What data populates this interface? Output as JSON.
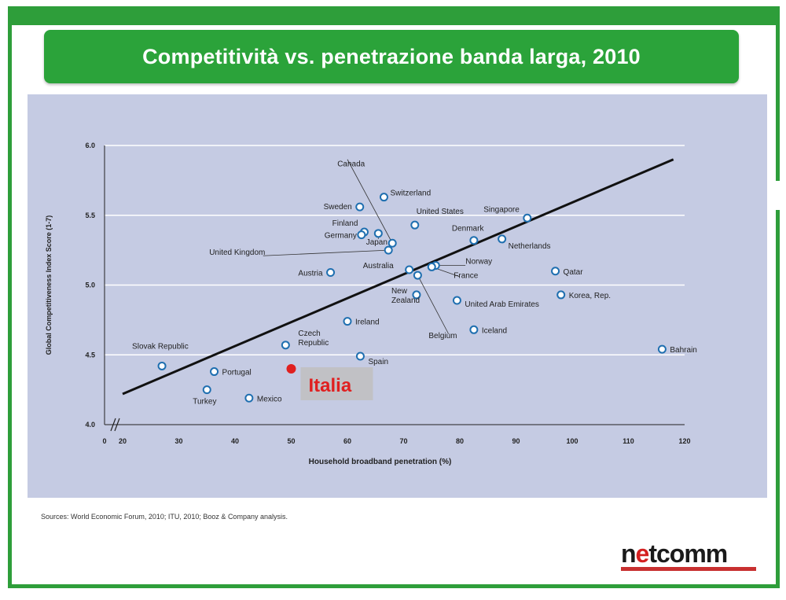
{
  "slide": {
    "title": "Competitività vs. penetrazione banda larga, 2010",
    "sources": "Sources: World Economic Forum, 2010; ITU, 2010; Booz & Company analysis.",
    "logo_text_a": "n",
    "logo_text_b": "e",
    "logo_text_c": "tcomm"
  },
  "colors": {
    "green": "#2ba33a",
    "panel": "#c5cbe3",
    "marker": "#1f6fb0",
    "highlight": "#e02020"
  },
  "chart_data": {
    "type": "scatter",
    "title": "",
    "xlabel": "Household broadband penetration (%)",
    "ylabel": "Global Competitiveness Index Score (1-7)",
    "xlim": [
      20,
      120
    ],
    "ylim": [
      4.0,
      6.0
    ],
    "x_axis_break": true,
    "x_ticks": [
      "0",
      "20",
      "30",
      "40",
      "50",
      "60",
      "70",
      "80",
      "90",
      "100",
      "110",
      "120"
    ],
    "y_ticks": [
      "4.0",
      "4.5",
      "5.0",
      "5.5",
      "6.0"
    ],
    "grid": "horizontal",
    "trendline": [
      [
        20,
        4.22
      ],
      [
        118,
        5.9
      ]
    ],
    "points": [
      {
        "label": "Switzerland",
        "x": 66.5,
        "y": 5.63
      },
      {
        "label": "Sweden",
        "x": 62.2,
        "y": 5.56
      },
      {
        "label": "Singapore",
        "x": 92,
        "y": 5.48
      },
      {
        "label": "United States",
        "x": 72,
        "y": 5.43
      },
      {
        "label": "Finland",
        "x": 63,
        "y": 5.38
      },
      {
        "label": "Germany",
        "x": 62.5,
        "y": 5.36
      },
      {
        "label": "Japan",
        "x": 65.5,
        "y": 5.37
      },
      {
        "label": "Canada",
        "x": 68,
        "y": 5.3
      },
      {
        "label": "Denmark",
        "x": 82.5,
        "y": 5.32
      },
      {
        "label": "Netherlands",
        "x": 87.5,
        "y": 5.33
      },
      {
        "label": "United Kingdom",
        "x": 67.3,
        "y": 5.25
      },
      {
        "label": "Norway",
        "x": 75.7,
        "y": 5.14
      },
      {
        "label": "France",
        "x": 75,
        "y": 5.13
      },
      {
        "label": "Australia",
        "x": 71,
        "y": 5.11
      },
      {
        "label": "Belgium",
        "x": 72.5,
        "y": 5.07
      },
      {
        "label": "Austria",
        "x": 57,
        "y": 5.09
      },
      {
        "label": "Qatar",
        "x": 97,
        "y": 5.1
      },
      {
        "label": "New Zealand",
        "x": 72.3,
        "y": 4.93
      },
      {
        "label": "Korea, Rep.",
        "x": 98,
        "y": 4.93
      },
      {
        "label": "United Arab Emirates",
        "x": 79.5,
        "y": 4.89
      },
      {
        "label": "Ireland",
        "x": 60,
        "y": 4.74
      },
      {
        "label": "Iceland",
        "x": 82.5,
        "y": 4.68
      },
      {
        "label": "Czech Republic",
        "x": 49,
        "y": 4.57
      },
      {
        "label": "Spain",
        "x": 62.3,
        "y": 4.49
      },
      {
        "label": "Bahrain",
        "x": 116,
        "y": 4.54
      },
      {
        "label": "Slovak Republic",
        "x": 27,
        "y": 4.42
      },
      {
        "label": "Portugal",
        "x": 36.3,
        "y": 4.38
      },
      {
        "label": "Turkey",
        "x": 35,
        "y": 4.25
      },
      {
        "label": "Mexico",
        "x": 42.5,
        "y": 4.19
      }
    ],
    "highlight": {
      "label": "Italia",
      "x": 50,
      "y": 4.4
    }
  }
}
